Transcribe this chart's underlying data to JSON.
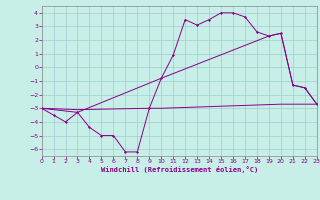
{
  "xlabel": "Windchill (Refroidissement éolien,°C)",
  "bg_color": "#c8eee8",
  "grid_color": "#9ecece",
  "line_color": "#880088",
  "xlim": [
    0,
    23
  ],
  "ylim": [
    -6.5,
    4.5
  ],
  "xticks": [
    0,
    1,
    2,
    3,
    4,
    5,
    6,
    7,
    8,
    9,
    10,
    11,
    12,
    13,
    14,
    15,
    16,
    17,
    18,
    19,
    20,
    21,
    22,
    23
  ],
  "yticks": [
    -6,
    -5,
    -4,
    -3,
    -2,
    -1,
    0,
    1,
    2,
    3,
    4
  ],
  "series_main_x": [
    0,
    1,
    2,
    3,
    4,
    5,
    6,
    7,
    8,
    9,
    10,
    11,
    12,
    13,
    14,
    15,
    16,
    17,
    18,
    19,
    20,
    21,
    22,
    23
  ],
  "series_main_y": [
    -3,
    -3.5,
    -4,
    -3.3,
    -4.4,
    -5,
    -5,
    -6.2,
    -6.2,
    -3,
    -0.8,
    0.9,
    3.5,
    3.1,
    3.5,
    4,
    4,
    3.7,
    2.6,
    2.3,
    2.5,
    -1.3,
    -1.5,
    -2.7
  ],
  "series_diag_x": [
    0,
    3,
    10,
    19,
    20,
    21,
    22,
    23
  ],
  "series_diag_y": [
    -3,
    -3.3,
    -0.8,
    2.3,
    2.5,
    -1.3,
    -1.5,
    -2.7
  ],
  "series_flat_x": [
    0,
    3,
    9,
    10,
    20,
    23
  ],
  "series_flat_y": [
    -3,
    -3.1,
    -3,
    -3,
    -2.7,
    -2.7
  ]
}
